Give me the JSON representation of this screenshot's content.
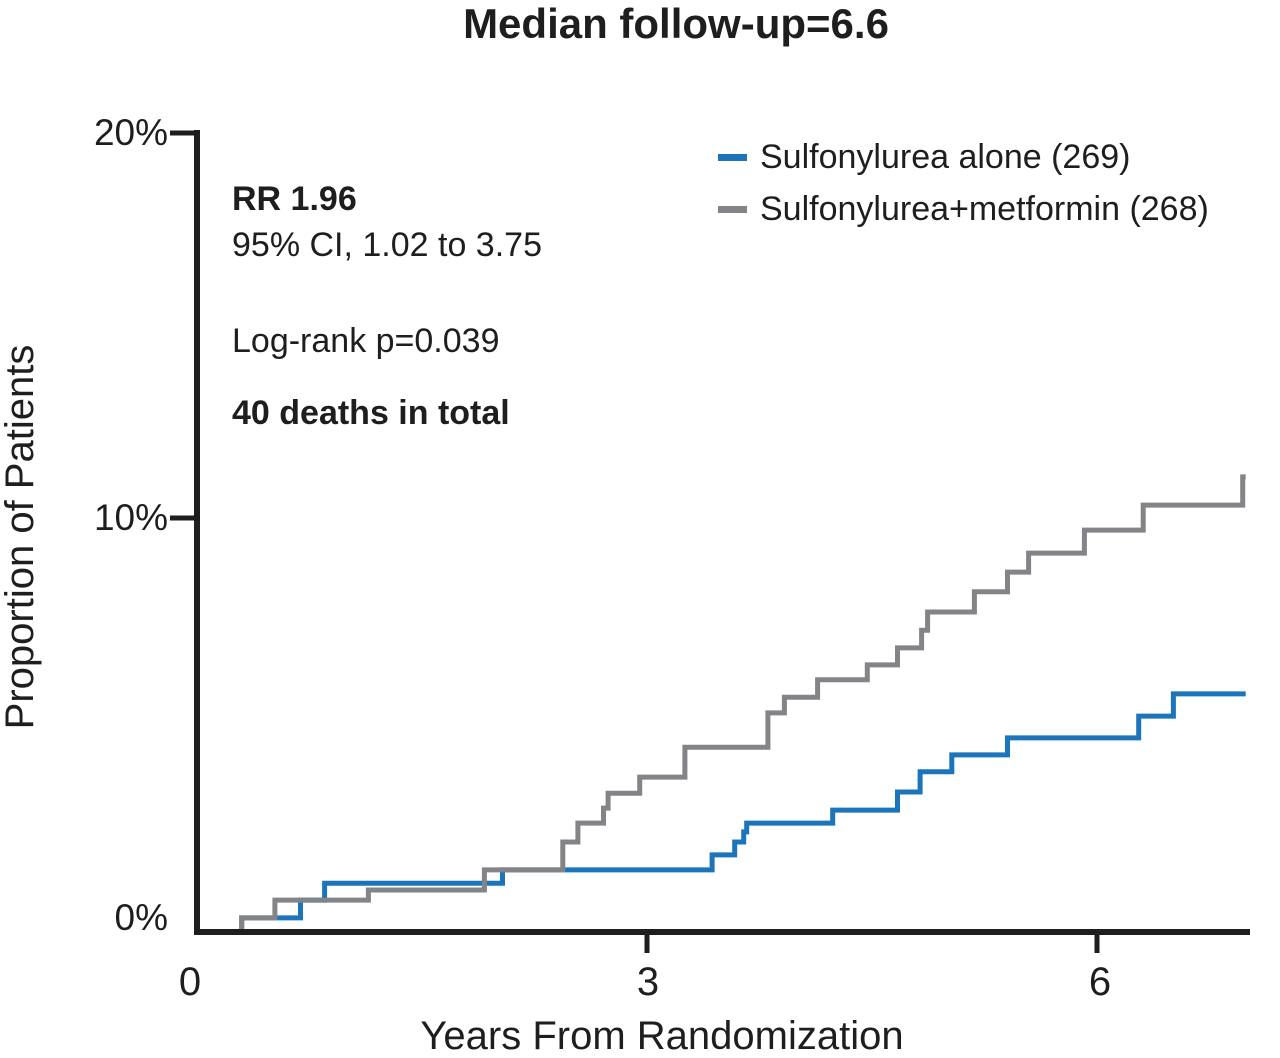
{
  "title": "Median follow-up=6.6",
  "annotations": {
    "rr": "RR 1.96",
    "ci": "95% CI, 1.02 to 3.75",
    "logrank": "Log-rank p=0.039",
    "deaths": "40 deaths in total"
  },
  "legend": [
    {
      "label": "Sulfonylurea alone (269)",
      "color": "#1c75bb"
    },
    {
      "label": "Sulfonylurea+metformin (268)",
      "color": "#828487"
    }
  ],
  "axes": {
    "x": {
      "label": "Years From Randomization",
      "ticks": [
        "0",
        "3",
        "6"
      ]
    },
    "y": {
      "label": "Proportion of Patients",
      "ticks": [
        "0%",
        "10%",
        "20%"
      ]
    }
  },
  "colors": {
    "axis": "#1e1e1e",
    "text": "#1e1e1e",
    "blue_series": "#1c75bb",
    "gray_series": "#828487"
  },
  "chart_data": {
    "type": "line",
    "subtype": "kaplan-meier-cumulative-incidence-step",
    "title": "Median follow-up=6.6",
    "xlabel": "Years From Randomization",
    "ylabel": "Proportion of Patients",
    "xlim": [
      0,
      7
    ],
    "ylim": [
      0,
      20
    ],
    "y_unit": "%",
    "xticks": [
      0,
      3,
      6
    ],
    "yticks": [
      0,
      10,
      20
    ],
    "grid": false,
    "legend_position": "top-right",
    "x_end": 6.97,
    "annotations": [
      "RR 1.96",
      "95% CI, 1.02 to 3.75",
      "Log-rank p=0.039",
      "40 deaths in total"
    ],
    "series": [
      {
        "name": "Sulfonylurea alone (269)",
        "n": 269,
        "color": "#1c75bb",
        "steps_year_pct": [
          [
            0.31,
            0.35
          ],
          [
            0.7,
            0.79
          ],
          [
            0.86,
            1.21
          ],
          [
            2.04,
            1.54
          ],
          [
            3.43,
            1.91
          ],
          [
            3.58,
            2.23
          ],
          [
            3.64,
            2.48
          ],
          [
            3.66,
            2.7
          ],
          [
            4.23,
            3.02
          ],
          [
            4.66,
            3.47
          ],
          [
            4.81,
            3.97
          ],
          [
            5.02,
            4.39
          ],
          [
            5.39,
            4.81
          ],
          [
            6.26,
            5.35
          ],
          [
            6.49,
            5.9
          ]
        ]
      },
      {
        "name": "Sulfonylurea+metformin (268)",
        "n": 268,
        "color": "#828487",
        "steps_year_pct": [
          [
            0.31,
            0.35
          ],
          [
            0.53,
            0.79
          ],
          [
            1.15,
            1.04
          ],
          [
            1.92,
            1.54
          ],
          [
            2.44,
            2.23
          ],
          [
            2.54,
            2.7
          ],
          [
            2.71,
            3.07
          ],
          [
            2.74,
            3.44
          ],
          [
            2.95,
            3.84
          ],
          [
            3.25,
            4.58
          ],
          [
            3.8,
            5.43
          ],
          [
            3.91,
            5.82
          ],
          [
            4.13,
            6.25
          ],
          [
            4.46,
            6.62
          ],
          [
            4.66,
            7.04
          ],
          [
            4.82,
            7.48
          ],
          [
            4.86,
            7.93
          ],
          [
            5.17,
            8.43
          ],
          [
            5.39,
            8.92
          ],
          [
            5.53,
            9.39
          ],
          [
            5.9,
            9.96
          ],
          [
            6.29,
            10.58
          ],
          [
            6.95,
            11.28
          ]
        ]
      }
    ]
  }
}
